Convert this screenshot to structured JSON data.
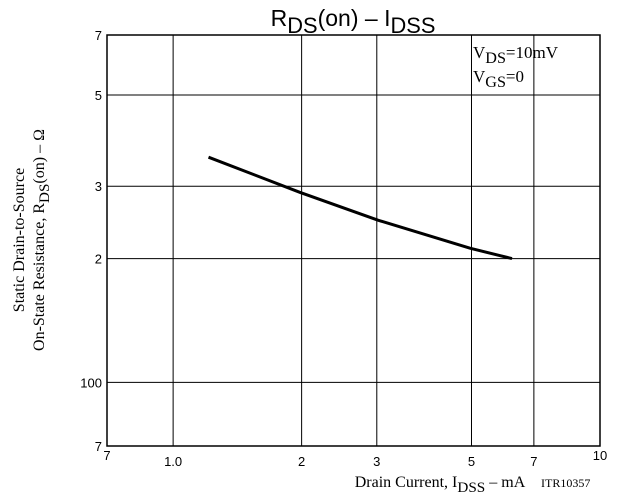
{
  "chart_data": {
    "type": "line",
    "title": [
      "R",
      "DS",
      "(on)  –  I",
      "DSS"
    ],
    "x_label": [
      "Drain Current, I",
      "DSS",
      "  –  mA"
    ],
    "y_label": [
      [
        "Static Drain-to-Source"
      ],
      [
        "On-State Resistance, R",
        "DS",
        "(on)  –  Ω"
      ]
    ],
    "annotations": [
      [
        "V",
        "DS",
        "=10mV"
      ],
      [
        "V",
        "GS",
        "=0"
      ]
    ],
    "code": "ITR10357",
    "x": [
      1.21,
      1.98,
      3.02,
      4.96,
      6.22
    ],
    "series": [
      {
        "name": "RDS(on)",
        "color": "#000000",
        "values": [
          353,
          290,
          248,
          212,
          200
        ]
      }
    ],
    "xscale": "log",
    "yscale": "log",
    "xlim": [
      0.7,
      10
    ],
    "ylim": [
      70,
      700
    ],
    "xticks": [
      {
        "value": 0.7,
        "label": "7"
      },
      {
        "value": 1,
        "label": "1.0"
      },
      2,
      3,
      5,
      7,
      10
    ],
    "yticks": [
      {
        "value": 70,
        "label": "7"
      },
      100,
      {
        "value": 200,
        "label": "2"
      },
      {
        "value": 300,
        "label": "3"
      },
      {
        "value": 500,
        "label": "5"
      },
      {
        "value": 700,
        "label": "7"
      }
    ],
    "grid": true
  }
}
